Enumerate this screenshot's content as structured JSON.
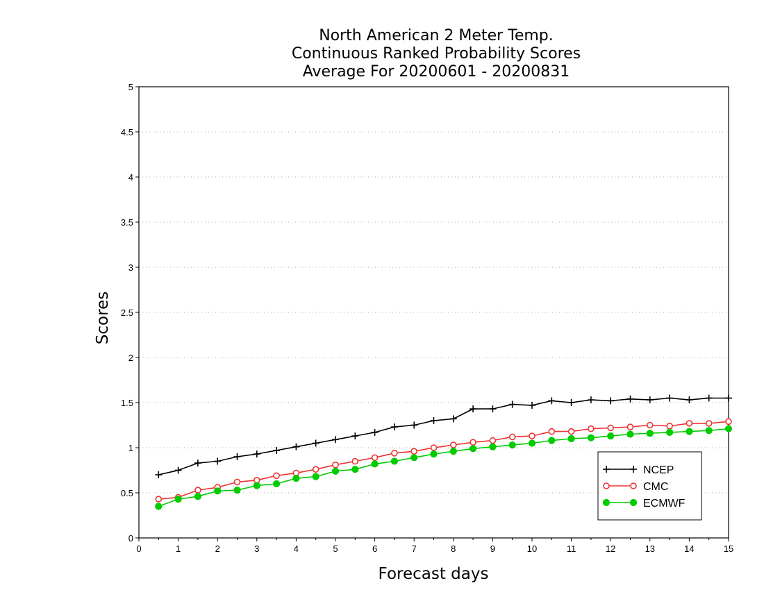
{
  "chart_data": {
    "type": "line",
    "title_lines": [
      "North American 2 Meter Temp.",
      "Continuous Ranked Probability Scores",
      "Average For 20200601 - 20200831"
    ],
    "xlabel": "Forecast days",
    "ylabel": "Scores",
    "xlim": [
      0,
      15
    ],
    "ylim": [
      0,
      5
    ],
    "x_ticks": [
      "0",
      "1",
      "2",
      "3",
      "4",
      "5",
      "6",
      "7",
      "8",
      "9",
      "10",
      "11",
      "12",
      "13",
      "14",
      "15"
    ],
    "y_ticks": [
      "0",
      "0.5",
      "1",
      "1.5",
      "2",
      "2.5",
      "3",
      "3.5",
      "4",
      "4.5",
      "5"
    ],
    "grid": "horizontal-dotted",
    "legend_position": "bottom-right",
    "x": [
      0.5,
      1,
      1.5,
      2,
      2.5,
      3,
      3.5,
      4,
      4.5,
      5,
      5.5,
      6,
      6.5,
      7,
      7.5,
      8,
      8.5,
      9,
      9.5,
      10,
      10.5,
      11,
      11.5,
      12,
      12.5,
      13,
      13.5,
      14,
      14.5,
      15
    ],
    "series": [
      {
        "name": "NCEP",
        "color": "#000000",
        "marker": "plus",
        "values": [
          0.7,
          0.75,
          0.83,
          0.85,
          0.9,
          0.93,
          0.97,
          1.01,
          1.05,
          1.09,
          1.13,
          1.17,
          1.23,
          1.25,
          1.3,
          1.32,
          1.43,
          1.43,
          1.48,
          1.47,
          1.52,
          1.5,
          1.53,
          1.52,
          1.54,
          1.53,
          1.55,
          1.53,
          1.55,
          1.55
        ]
      },
      {
        "name": "CMC",
        "color": "#ee3333",
        "marker": "open-circle",
        "values": [
          0.43,
          0.45,
          0.53,
          0.56,
          0.62,
          0.64,
          0.69,
          0.72,
          0.76,
          0.81,
          0.85,
          0.89,
          0.94,
          0.96,
          1.0,
          1.03,
          1.06,
          1.08,
          1.12,
          1.13,
          1.18,
          1.18,
          1.21,
          1.22,
          1.23,
          1.25,
          1.24,
          1.27,
          1.27,
          1.29
        ]
      },
      {
        "name": "ECMWF",
        "color": "#00cc00",
        "marker": "filled-circle",
        "values": [
          0.35,
          0.43,
          0.46,
          0.52,
          0.53,
          0.58,
          0.6,
          0.66,
          0.68,
          0.74,
          0.76,
          0.82,
          0.85,
          0.89,
          0.93,
          0.96,
          0.99,
          1.01,
          1.03,
          1.05,
          1.08,
          1.1,
          1.11,
          1.13,
          1.15,
          1.16,
          1.17,
          1.18,
          1.19,
          1.21
        ]
      }
    ]
  }
}
